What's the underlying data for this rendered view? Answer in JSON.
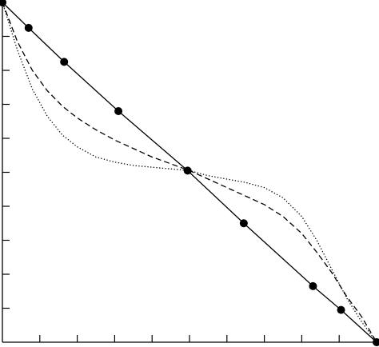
{
  "chart_data": {
    "type": "line",
    "title": "",
    "xlabel": "",
    "ylabel": "",
    "xlim": [
      0,
      1
    ],
    "ylim": [
      0,
      1
    ],
    "grid": false,
    "legend": "none",
    "x_ticks": [
      0.1,
      0.2,
      0.3,
      0.4,
      0.5,
      0.6,
      0.7,
      0.8,
      0.9
    ],
    "y_ticks": [
      0.1,
      0.2,
      0.3,
      0.4,
      0.5,
      0.6,
      0.7,
      0.8,
      0.9
    ],
    "series": [
      {
        "style": "solid",
        "color": "#000000",
        "markers": true,
        "x": [
          0.0,
          0.07,
          0.165,
          0.31,
          0.495,
          0.645,
          0.83,
          0.905,
          1.0
        ],
        "y": [
          1.0,
          0.925,
          0.825,
          0.68,
          0.505,
          0.35,
          0.165,
          0.095,
          0.0
        ]
      },
      {
        "style": "dashed",
        "color": "#000000",
        "markers": false,
        "x": [
          0.0,
          0.04,
          0.08,
          0.12,
          0.16,
          0.2,
          0.25,
          0.3,
          0.35,
          0.4,
          0.45,
          0.5,
          0.55,
          0.6,
          0.65,
          0.7,
          0.75,
          0.8,
          0.84,
          0.88,
          0.92,
          0.96,
          1.0
        ],
        "y": [
          1.0,
          0.885,
          0.8,
          0.74,
          0.695,
          0.66,
          0.625,
          0.595,
          0.57,
          0.545,
          0.525,
          0.505,
          0.48,
          0.455,
          0.43,
          0.405,
          0.37,
          0.32,
          0.265,
          0.205,
          0.135,
          0.075,
          0.0
        ]
      },
      {
        "style": "dotted",
        "color": "#000000",
        "markers": false,
        "x": [
          0.0,
          0.04,
          0.08,
          0.12,
          0.16,
          0.2,
          0.25,
          0.3,
          0.35,
          0.4,
          0.45,
          0.5,
          0.55,
          0.6,
          0.65,
          0.7,
          0.75,
          0.8,
          0.84,
          0.88,
          0.92,
          0.96,
          1.0
        ],
        "y": [
          1.0,
          0.86,
          0.745,
          0.665,
          0.61,
          0.575,
          0.545,
          0.53,
          0.52,
          0.515,
          0.51,
          0.505,
          0.49,
          0.48,
          0.47,
          0.455,
          0.425,
          0.37,
          0.3,
          0.215,
          0.13,
          0.06,
          0.0
        ]
      }
    ]
  }
}
